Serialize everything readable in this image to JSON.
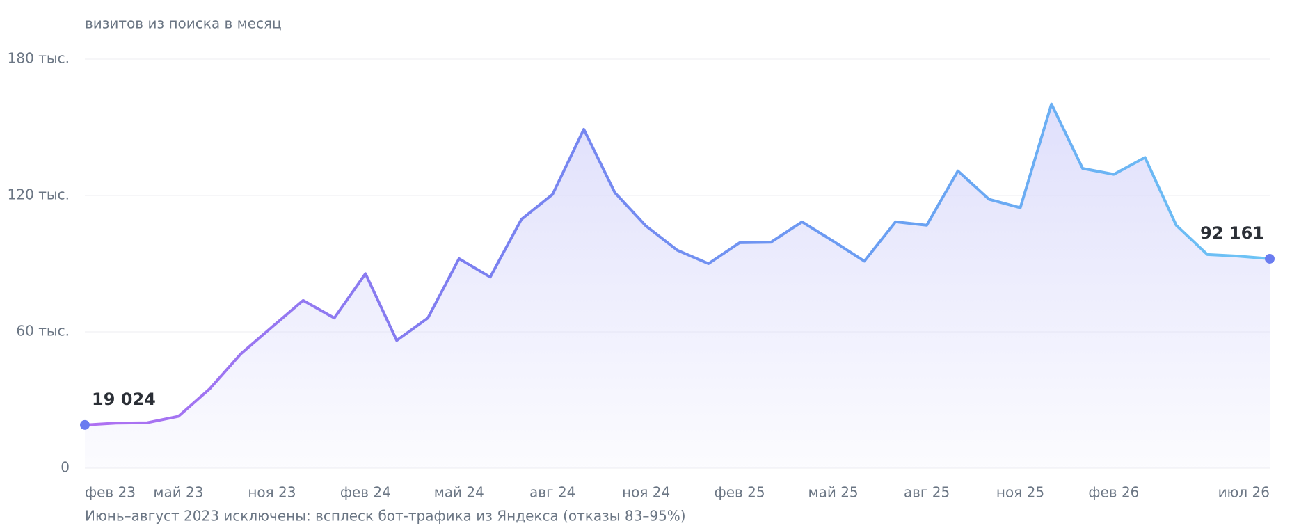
{
  "chart_data": {
    "type": "line",
    "subtitle": "визитов из поиска в месяц",
    "note": "Июнь–август 2023 исключены: всплеск бот-трафика из Яндекса (отказы 83–95%)",
    "categories": [
      "фев 23",
      null,
      null,
      "май 23",
      null,
      null,
      "ноя 23",
      null,
      null,
      "фев 24",
      null,
      null,
      "май 24",
      null,
      null,
      "авг 24",
      null,
      null,
      "ноя 24",
      null,
      null,
      "фев 25",
      null,
      null,
      "май 25",
      null,
      null,
      "авг 25",
      null,
      null,
      "ноя 25",
      null,
      null,
      "фев 26",
      null,
      null,
      null,
      null,
      "июл 26"
    ],
    "series": [
      {
        "name": "визиты",
        "gradient": [
          "#b070f2",
          "#7a7ff0",
          "#6a9ef2",
          "#6cc4f5"
        ],
        "area_color": "#dcdcfb",
        "point_color": "#6a7cf0",
        "values": [
          19024,
          19800,
          20000,
          22800,
          34900,
          50300,
          62100,
          73800,
          66100,
          85600,
          56200,
          66100,
          92200,
          84100,
          109500,
          120500,
          149100,
          121200,
          106500,
          95900,
          90000,
          99200,
          99400,
          108400,
          99900,
          91100,
          108400,
          106900,
          130800,
          118300,
          114600,
          160200,
          131900,
          129300,
          136700,
          106900,
          94000,
          93300,
          92161
        ],
        "value_labels": [
          "19 024",
          null,
          null,
          null,
          null,
          null,
          null,
          null,
          null,
          null,
          null,
          null,
          null,
          null,
          null,
          null,
          null,
          null,
          null,
          null,
          null,
          null,
          null,
          null,
          null,
          null,
          null,
          null,
          null,
          null,
          null,
          null,
          null,
          null,
          null,
          null,
          null,
          null,
          "92 161"
        ]
      }
    ],
    "ylim": [
      0,
      180000
    ],
    "yticks": [
      0,
      {
        "value": 60000,
        "label": "60 тыс."
      },
      {
        "value": 120000,
        "label": "120 тыс."
      },
      {
        "value": 180000,
        "label": "180 тыс."
      }
    ],
    "grid": true
  }
}
